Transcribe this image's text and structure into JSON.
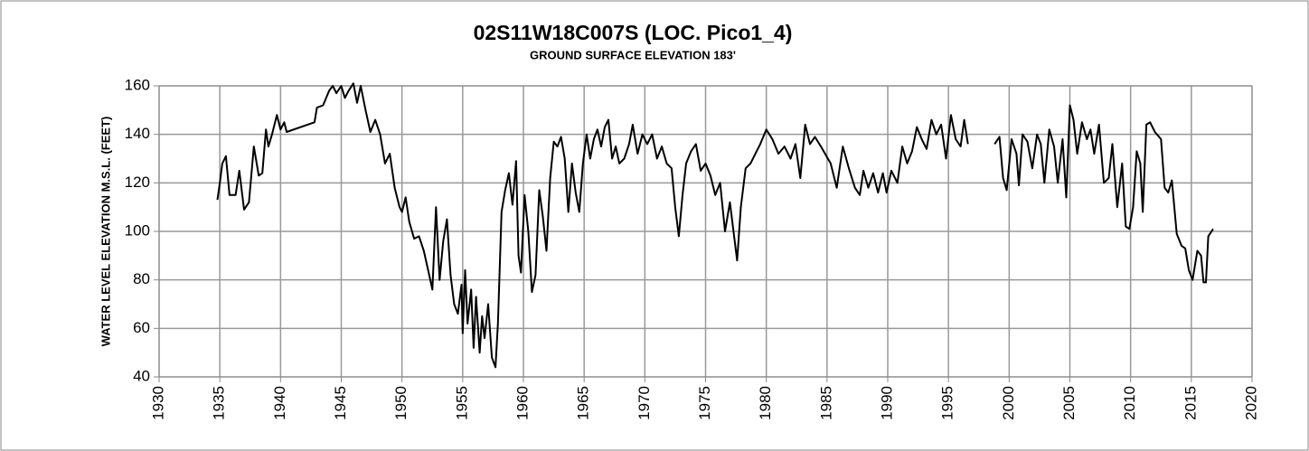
{
  "chart_data": {
    "type": "line",
    "title": "02S11W18C007S (LOC. Pico1_4)",
    "subtitle": "GROUND SURFACE ELEVATION 183'",
    "y_label": "WATER LEVEL ELEVATION M.S.L. (FEET)",
    "grid": true,
    "xlim": [
      1930,
      2020
    ],
    "xticks": [
      1930,
      1935,
      1940,
      1945,
      1950,
      1955,
      1960,
      1965,
      1970,
      1975,
      1980,
      1985,
      1990,
      1995,
      2000,
      2005,
      2010,
      2015,
      2020
    ],
    "ylim": [
      40,
      160
    ],
    "yticks": [
      40,
      60,
      80,
      100,
      120,
      140,
      160
    ],
    "x": [
      1934.8,
      1935,
      1935.2,
      1935.5,
      1935.8,
      1936.3,
      1936.6,
      1937,
      1937.4,
      1937.8,
      1938.2,
      1938.5,
      1938.8,
      1939,
      1939.3,
      1939.7,
      1940,
      1940.3,
      1940.5,
      1942.8,
      1943,
      1943.5,
      1944,
      1944.3,
      1944.6,
      1945,
      1945.3,
      1945.6,
      1946,
      1946.3,
      1946.6,
      1947,
      1947.4,
      1947.8,
      1948.2,
      1948.6,
      1949,
      1949.4,
      1949.8,
      1950,
      1950.3,
      1950.6,
      1951,
      1951.4,
      1951.8,
      1952.2,
      1952.5,
      1952.8,
      1953.1,
      1953.4,
      1953.7,
      1954,
      1954.3,
      1954.6,
      1954.9,
      1955,
      1955.2,
      1955.4,
      1955.7,
      1955.9,
      1956.1,
      1956.4,
      1956.6,
      1956.8,
      1957.1,
      1957.4,
      1957.7,
      1957.9,
      1958.2,
      1958.5,
      1958.8,
      1959.1,
      1959.4,
      1959.6,
      1959.8,
      1960.1,
      1960.4,
      1960.7,
      1961,
      1961.3,
      1961.6,
      1961.9,
      1962.2,
      1962.5,
      1962.8,
      1963.1,
      1963.4,
      1963.7,
      1964,
      1964.3,
      1964.6,
      1964.9,
      1965.2,
      1965.5,
      1965.8,
      1966.1,
      1966.4,
      1966.7,
      1967,
      1967.3,
      1967.6,
      1967.9,
      1968.3,
      1968.7,
      1969,
      1969.4,
      1969.8,
      1970.2,
      1970.6,
      1971,
      1971.4,
      1971.8,
      1972.2,
      1972.5,
      1972.8,
      1973.1,
      1973.4,
      1973.8,
      1974.2,
      1974.6,
      1975,
      1975.4,
      1975.8,
      1976.2,
      1976.6,
      1977,
      1977.3,
      1977.6,
      1977.9,
      1978.3,
      1978.7,
      1979.1,
      1979.5,
      1980,
      1980.5,
      1981,
      1981.5,
      1982,
      1982.4,
      1982.8,
      1983.2,
      1983.6,
      1984,
      1984.5,
      1985.3,
      1985.8,
      1986.3,
      1986.8,
      1987.3,
      1987.7,
      1988,
      1988.4,
      1988.8,
      1989.2,
      1989.6,
      1989.9,
      1990.3,
      1990.8,
      1991.2,
      1991.6,
      1992,
      1992.4,
      1992.8,
      1993.2,
      1993.6,
      1994,
      1994.4,
      1994.8,
      1995.2,
      1995.6,
      1996,
      1996.3,
      1996.6,
      1997.8,
      1998.8,
      1999.2,
      1999.5,
      1999.8,
      2000.2,
      2000.6,
      2000.8,
      2001.1,
      2001.5,
      2001.9,
      2002.3,
      2002.6,
      2002.9,
      2003.3,
      2003.7,
      2004,
      2004.4,
      2004.7,
      2005,
      2005.3,
      2005.6,
      2006,
      2006.4,
      2006.7,
      2007,
      2007.4,
      2007.8,
      2008.2,
      2008.5,
      2008.9,
      2009.3,
      2009.6,
      2009.9,
      2010.2,
      2010.5,
      2010.8,
      2011,
      2011.3,
      2011.6,
      2012,
      2012.5,
      2012.8,
      2013.1,
      2013.4,
      2013.8,
      2014.2,
      2014.5,
      2014.8,
      2015.1,
      2015.5,
      2015.8,
      2016,
      2016.2,
      2016.4,
      2016.8
    ],
    "series": [
      {
        "color": "#000000",
        "values": [
          113,
          120,
          128,
          131,
          115,
          115,
          125,
          109,
          112,
          135,
          123,
          124,
          142,
          135,
          140,
          148,
          142,
          145,
          141,
          145,
          151,
          152,
          158,
          160,
          157,
          160,
          155,
          158,
          161,
          153,
          160,
          150,
          141,
          146,
          140,
          128,
          132,
          118,
          110,
          108,
          114,
          104,
          97,
          98,
          92,
          83,
          76,
          110,
          80,
          96,
          105,
          82,
          70,
          66,
          78,
          58,
          84,
          62,
          76,
          52,
          73,
          50,
          65,
          56,
          70,
          48,
          44,
          62,
          108,
          117,
          124,
          111,
          129,
          90,
          83,
          115,
          100,
          75,
          82,
          117,
          106,
          92,
          122,
          137,
          135,
          139,
          130,
          108,
          128,
          116,
          108,
          128,
          140,
          130,
          138,
          142,
          135,
          143,
          146,
          130,
          135,
          128,
          130,
          136,
          144,
          132,
          140,
          136,
          140,
          130,
          135,
          128,
          126,
          110,
          98,
          115,
          128,
          133,
          136,
          125,
          128,
          123,
          115,
          120,
          100,
          112,
          100,
          88,
          110,
          126,
          128,
          132,
          136,
          142,
          138,
          132,
          135,
          130,
          136,
          122,
          144,
          136,
          139,
          135,
          128,
          118,
          135,
          126,
          118,
          115,
          125,
          118,
          124,
          116,
          124,
          116,
          125,
          120,
          135,
          128,
          133,
          143,
          138,
          134,
          146,
          140,
          144,
          130,
          148,
          138,
          135,
          146,
          136,
          null,
          136,
          139,
          122,
          117,
          138,
          132,
          119,
          140,
          137,
          126,
          140,
          136,
          120,
          142,
          135,
          120,
          138,
          114,
          152,
          146,
          132,
          145,
          138,
          142,
          132,
          144,
          120,
          122,
          136,
          110,
          128,
          102,
          101,
          110,
          133,
          128,
          108,
          144,
          145,
          141,
          138,
          118,
          116,
          121,
          99,
          94,
          93,
          84,
          80,
          92,
          90,
          79,
          79,
          98,
          101
        ]
      }
    ]
  }
}
